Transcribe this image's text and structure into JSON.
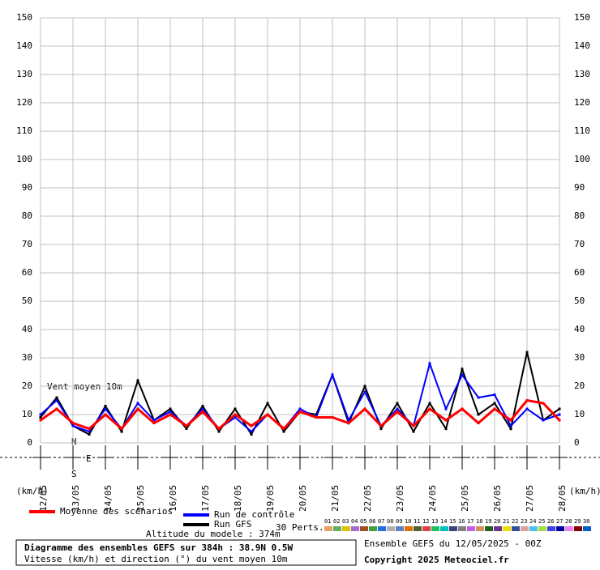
{
  "chart_data": {
    "type": "line",
    "title": "Diagramme des ensembles GEFS sur 384h : 38.9N 0.5W",
    "subtitle": "Vitesse (km/h) et direction (°) du vent moyen 10m",
    "run_label": "Ensemble GEFS du 12/05/2025 - 00Z",
    "copyright": "Copyright 2025 Meteociel.fr",
    "y_label": "(km/h)",
    "x_label": "(km/h)",
    "annotation": "Vent moyen 10m",
    "altitude": "Altitude du modele : 374m",
    "perturbations_label": "30 Perts.",
    "compass": [
      "N",
      "E",
      "S"
    ],
    "categories": [
      "12/05",
      null,
      "13/05",
      null,
      "14/05",
      null,
      "15/05",
      null,
      "16/05",
      null,
      "17/05",
      null,
      "18/05",
      null,
      "19/05",
      null,
      "20/05",
      null,
      "21/05",
      null,
      "22/05",
      null,
      "23/05",
      null,
      "24/05",
      null,
      "25/05",
      null,
      "26/05",
      null,
      "27/05",
      null,
      "28/05"
    ],
    "ylim": [
      0,
      150
    ],
    "yticks": [
      0,
      10,
      20,
      30,
      40,
      50,
      60,
      70,
      80,
      90,
      100,
      110,
      120,
      130,
      140,
      150
    ],
    "grid": true,
    "series": [
      {
        "name": "Run GFS",
        "color": "#000000",
        "values": [
          9,
          16,
          6,
          3,
          13,
          4,
          22,
          8,
          12,
          5,
          13,
          4,
          12,
          3,
          14,
          4,
          11,
          10,
          24,
          7,
          20,
          5,
          14,
          4,
          14,
          5,
          26,
          10,
          14,
          5,
          32,
          8,
          12
        ]
      },
      {
        "name": "Run de contrôle",
        "color": "#0000ff",
        "values": [
          10,
          15,
          6,
          4,
          12,
          5,
          14,
          8,
          11,
          6,
          12,
          5,
          9,
          4,
          10,
          5,
          12,
          9,
          24,
          8,
          18,
          6,
          12,
          6,
          28,
          12,
          24,
          16,
          17,
          6,
          12,
          8,
          10
        ]
      },
      {
        "name": "Moyenne des scénarios",
        "color": "#ff0000",
        "values": [
          8,
          12,
          7,
          5,
          10,
          5,
          12,
          7,
          10,
          6,
          11,
          5,
          10,
          6,
          10,
          5,
          11,
          9,
          9,
          7,
          12,
          6,
          11,
          6,
          12,
          8,
          12,
          7,
          12,
          8,
          15,
          14,
          8
        ]
      }
    ],
    "perturbations": [
      {
        "label": "01",
        "color": "#e8a060"
      },
      {
        "label": "02",
        "color": "#60b060"
      },
      {
        "label": "03",
        "color": "#e0c000"
      },
      {
        "label": "04",
        "color": "#a070d0"
      },
      {
        "label": "05",
        "color": "#a05020"
      },
      {
        "label": "06",
        "color": "#40a040"
      },
      {
        "label": "07",
        "color": "#2070e0"
      },
      {
        "label": "08",
        "color": "#b0b0b0"
      },
      {
        "label": "09",
        "color": "#6080c0"
      },
      {
        "label": "10",
        "color": "#e07000"
      },
      {
        "label": "11",
        "color": "#506030"
      },
      {
        "label": "12",
        "color": "#e04040"
      },
      {
        "label": "13",
        "color": "#20c060"
      },
      {
        "label": "14",
        "color": "#00c0c0"
      },
      {
        "label": "15",
        "color": "#404080"
      },
      {
        "label": "16",
        "color": "#808080"
      },
      {
        "label": "17",
        "color": "#c060e0"
      },
      {
        "label": "18",
        "color": "#d09060"
      },
      {
        "label": "19",
        "color": "#206020"
      },
      {
        "label": "20",
        "color": "#703090"
      },
      {
        "label": "21",
        "color": "#f0e000"
      },
      {
        "label": "22",
        "color": "#3050a0"
      },
      {
        "label": "23",
        "color": "#e0a0a0"
      },
      {
        "label": "24",
        "color": "#50c0f0"
      },
      {
        "label": "25",
        "color": "#a0e040"
      },
      {
        "label": "26",
        "color": "#4040e0"
      },
      {
        "label": "27",
        "color": "#0000a0"
      },
      {
        "label": "28",
        "color": "#f080f0"
      },
      {
        "label": "29",
        "color": "#800000"
      },
      {
        "label": "30",
        "color": "#0060c0"
      }
    ]
  }
}
